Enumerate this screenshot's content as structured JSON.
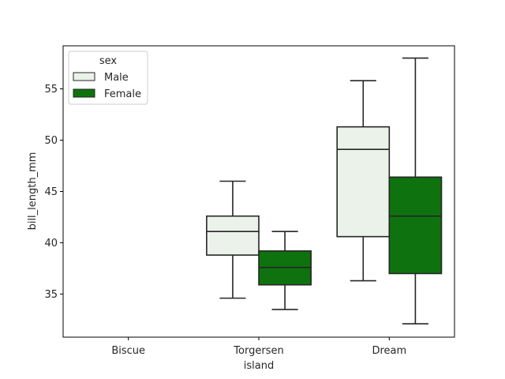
{
  "chart_data": {
    "type": "box",
    "xlabel": "island",
    "ylabel": "bill_length_mm",
    "categories": [
      "Biscue",
      "Torgersen",
      "Dream"
    ],
    "ylim": [
      30.8,
      59.2
    ],
    "yticks": [
      35,
      40,
      45,
      50,
      55
    ],
    "grid": false,
    "legend": {
      "title": "sex",
      "placement": "top-left"
    },
    "series": [
      {
        "name": "Male",
        "color": "#eaf2ea",
        "boxes": [
          null,
          {
            "whisker_low": 34.6,
            "q1": 38.8,
            "median": 41.1,
            "q3": 42.6,
            "whisker_high": 46.0
          },
          {
            "whisker_low": 36.3,
            "q1": 40.6,
            "median": 49.1,
            "q3": 51.3,
            "whisker_high": 55.8
          }
        ]
      },
      {
        "name": "Female",
        "color": "#0e730e",
        "boxes": [
          null,
          {
            "whisker_low": 33.5,
            "q1": 35.9,
            "median": 37.6,
            "q3": 39.2,
            "whisker_high": 41.1
          },
          {
            "whisker_low": 32.1,
            "q1": 37.0,
            "median": 42.6,
            "q3": 46.4,
            "whisker_high": 58.0
          }
        ]
      }
    ]
  }
}
